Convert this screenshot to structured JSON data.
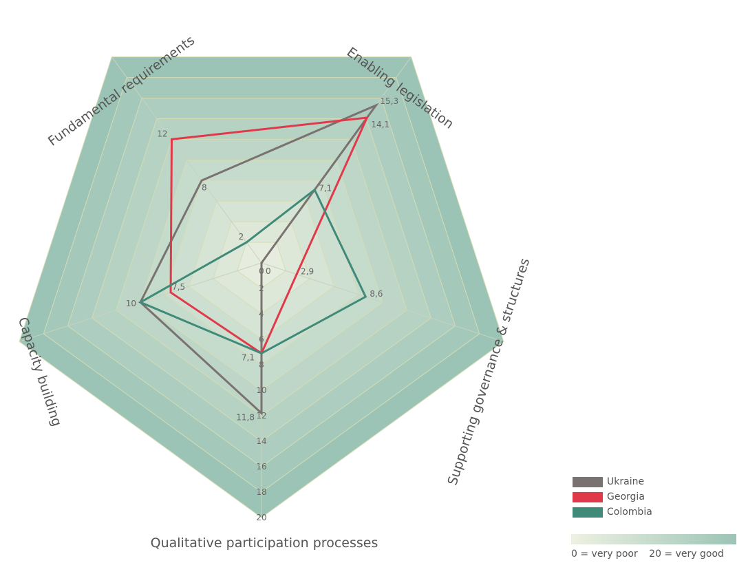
{
  "chart_data": {
    "type": "radar",
    "axes": [
      "Enabling legislation",
      "Supporting governance & structures",
      "Qualitative participation processes",
      "Capacity building",
      "Fundamental requirements"
    ],
    "range": [
      0,
      20
    ],
    "ticks": [
      "0",
      "2",
      "4",
      "6",
      "8",
      "10",
      "12",
      "14",
      "16",
      "18",
      "20"
    ],
    "series": [
      {
        "name": "Ukraine",
        "color": "#7a7270",
        "values": [
          15.3,
          0,
          11.8,
          10,
          8
        ],
        "labels": [
          "15,3",
          "0",
          "11,8",
          "10",
          "8"
        ]
      },
      {
        "name": "Georgia",
        "color": "#e03a4a",
        "values": [
          14.1,
          2.9,
          7.1,
          7.5,
          12
        ],
        "labels": [
          "14,1",
          "2,9",
          "7,1",
          "7,5",
          "12"
        ]
      },
      {
        "name": "Colombia",
        "color": "#3f8a78",
        "values": [
          7.1,
          8.6,
          7.1,
          10,
          2
        ],
        "labels": [
          "7,1",
          "8,6",
          "",
          "",
          "2"
        ]
      }
    ],
    "legend_position": "bottom-right",
    "scale_legend": {
      "low": "0 = very poor",
      "high": "20 = very good"
    },
    "colors": {
      "band_low": "#eef1e2",
      "band_high": "#9cc4b6",
      "grid": "#d6dcb4"
    }
  }
}
